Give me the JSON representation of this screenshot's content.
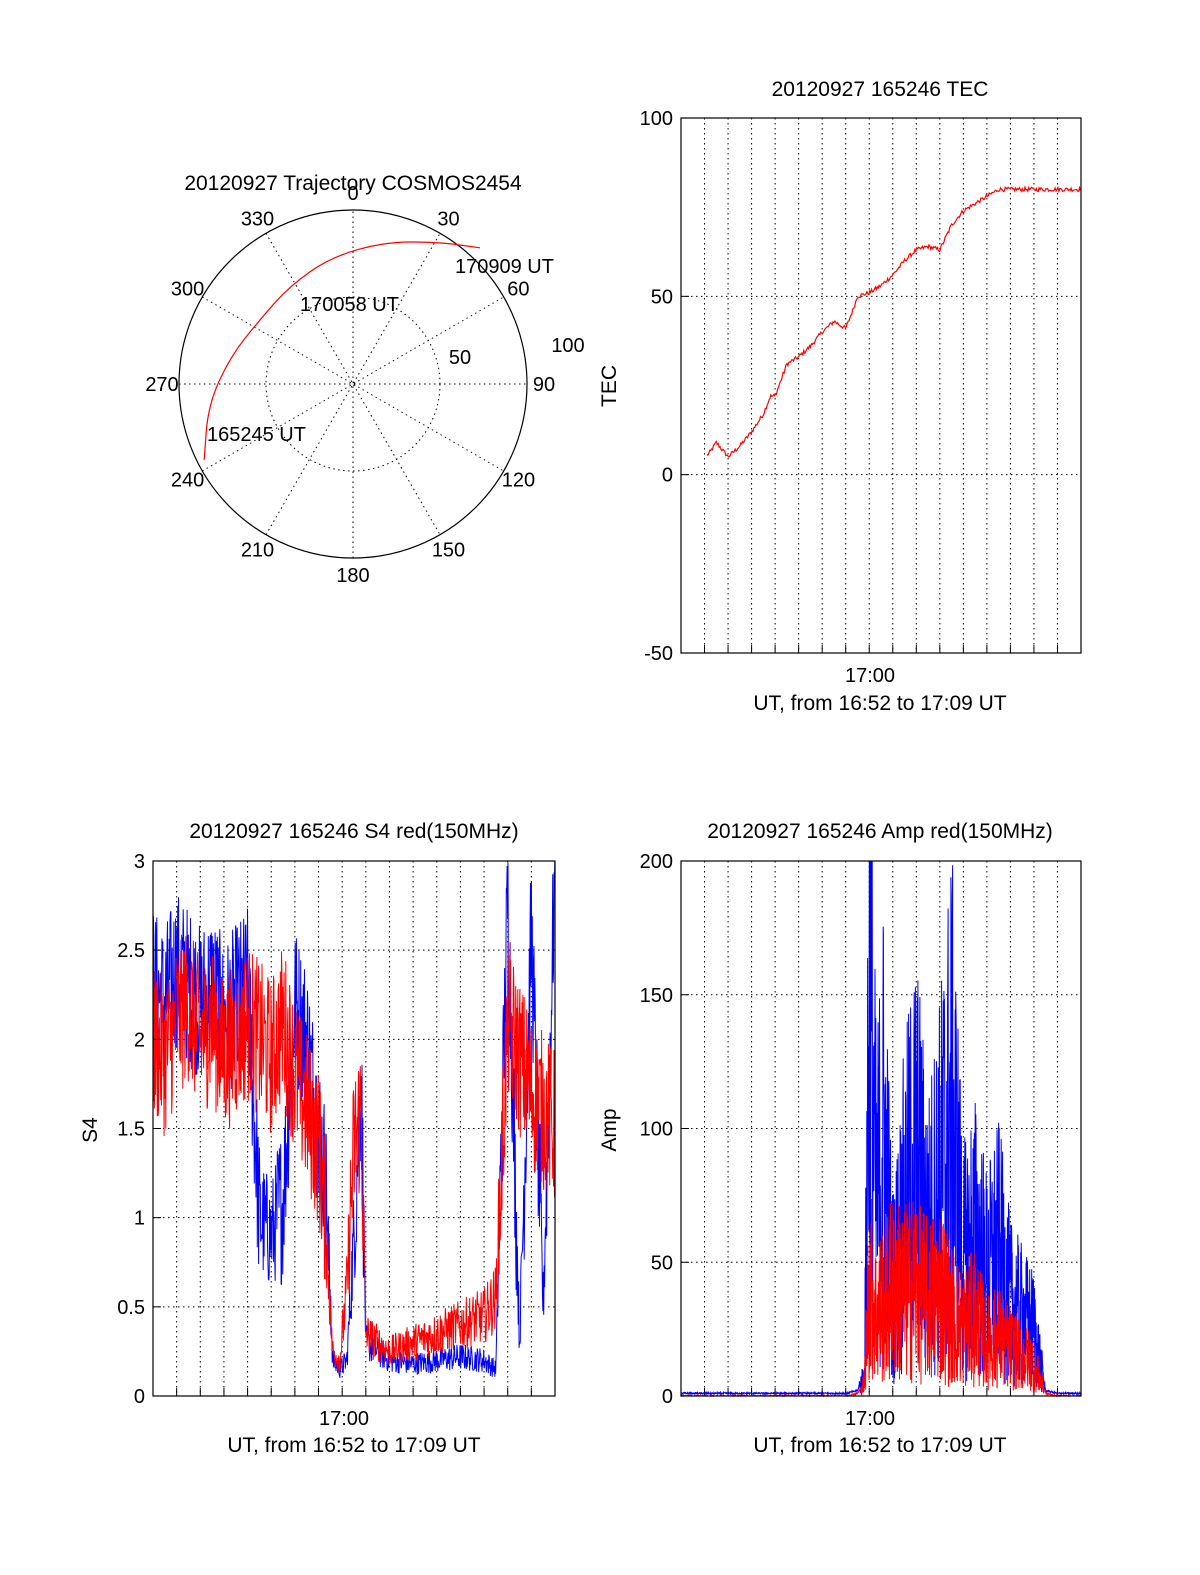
{
  "chart_data": [
    {
      "type": "polar",
      "title": "20120927 Trajectory COSMOS2454",
      "azimuth_labels": [
        "0",
        "30",
        "60",
        "90",
        "120",
        "150",
        "180",
        "210",
        "240",
        "270",
        "300",
        "330"
      ],
      "elevation_labels": [
        "50",
        "100"
      ],
      "trajectory": [
        {
          "az": 243,
          "r": 96
        },
        {
          "az": 262,
          "r": 84
        },
        {
          "az": 283,
          "r": 72
        },
        {
          "az": 305,
          "r": 65
        },
        {
          "az": 327,
          "r": 67
        },
        {
          "az": 350,
          "r": 74
        },
        {
          "az": 13,
          "r": 84
        },
        {
          "az": 32,
          "r": 96
        },
        {
          "az": 43,
          "r": 107
        }
      ],
      "annotations": [
        {
          "text": "170909 UT",
          "az": 43,
          "r": 107
        },
        {
          "text": "170058 UT",
          "az": 338,
          "r": 52
        },
        {
          "text": "165245 UT",
          "az": 250,
          "r": 75
        }
      ],
      "color": "#ff0000"
    },
    {
      "type": "line",
      "title": "20120927 165246 TEC",
      "ylabel": "TEC",
      "xlabel": "UT, from 16:52 to 17:09 UT",
      "xtick_label": "17:00",
      "ylim": [
        -50,
        100
      ],
      "yticks": [
        "-50",
        "0",
        "50",
        "100"
      ],
      "x": [
        0,
        0.6,
        1.2,
        1.5,
        2,
        2.5,
        3,
        3.5,
        3.8,
        4,
        4.5,
        5,
        5.5,
        6,
        6.5,
        7,
        7.3,
        7.5,
        8,
        8.5,
        9,
        9.5,
        10,
        10.5,
        11,
        11.5,
        12,
        12.5,
        13,
        13.5,
        14,
        14.5,
        15,
        15.5,
        15.8,
        16.5,
        17
      ],
      "series": [
        {
          "color": "#ff0000",
          "values": [
            0,
            3,
            6,
            9,
            5,
            8,
            12,
            17,
            22,
            22,
            31,
            33,
            36,
            40,
            43,
            41,
            46,
            50,
            51,
            53,
            56,
            60,
            63,
            64,
            63,
            70,
            74,
            76,
            78,
            80,
            80,
            80,
            80,
            80,
            80,
            80,
            80
          ]
        }
      ],
      "x_range_minutes": [
        0,
        17
      ]
    },
    {
      "type": "line",
      "title": "20120927 165246 S4 red(150MHz)",
      "ylabel": "S4",
      "xlabel": "UT, from 16:52 to 17:09 UT",
      "xtick_label": "17:00",
      "ylim": [
        0,
        3
      ],
      "yticks": [
        "0",
        "0.5",
        "1",
        "1.5",
        "2",
        "2.5",
        "3"
      ],
      "series": [
        {
          "name": "",
          "color": "#ff0000",
          "x": [
            0,
            0.5,
            1,
            1.5,
            2,
            2.5,
            3,
            3.5,
            4,
            4.5,
            5,
            5.5,
            6,
            6.5,
            7,
            7.3,
            7.6,
            7.9,
            8.2,
            8.5,
            8.8,
            9,
            10,
            11,
            12,
            13,
            14,
            14.5,
            15,
            15.5,
            16,
            16.5,
            17
          ],
          "values": [
            2.0,
            1.9,
            2.1,
            2.2,
            2.0,
            2.1,
            1.9,
            2.0,
            2.1,
            2.0,
            1.9,
            2.1,
            1.8,
            1.6,
            1.4,
            1.0,
            0.25,
            0.2,
            0.6,
            1.4,
            1.6,
            0.35,
            0.25,
            0.3,
            0.35,
            0.4,
            0.45,
            0.55,
            2.1,
            1.9,
            1.7,
            1.6,
            1.5
          ]
        },
        {
          "name": "",
          "color": "#0000ff",
          "x": [
            0,
            0.5,
            1,
            1.5,
            2,
            2.5,
            3,
            3.5,
            4,
            4.5,
            5,
            5.5,
            6,
            6.5,
            7,
            7.3,
            7.6,
            7.9,
            8.2,
            8.5,
            8.8,
            9,
            10,
            11,
            12,
            13,
            14,
            14.5,
            15,
            15.5,
            16,
            16.5,
            17
          ],
          "values": [
            2.3,
            2.2,
            2.4,
            2.3,
            2.2,
            2.3,
            2.1,
            2.2,
            2.3,
            1.0,
            0.9,
            1.1,
            2.2,
            2.0,
            1.5,
            1.2,
            0.2,
            0.15,
            0.2,
            0.9,
            1.8,
            0.3,
            0.2,
            0.18,
            0.2,
            0.22,
            0.2,
            0.15,
            2.8,
            0.3,
            2.6,
            0.5,
            3.0
          ]
        }
      ],
      "x_range_minutes": [
        0,
        17
      ]
    },
    {
      "type": "line",
      "title": "20120927 165246 Amp red(150MHz)",
      "ylabel": "Amp",
      "xlabel": "UT, from 16:52 to 17:09 UT",
      "xtick_label": "17:00",
      "ylim": [
        0,
        200
      ],
      "yticks": [
        "0",
        "50",
        "100",
        "150",
        "200"
      ],
      "series": [
        {
          "name": "",
          "color": "#0000ff",
          "x": [
            0,
            1,
            2,
            3,
            4,
            5,
            6,
            7,
            7.5,
            7.8,
            8,
            8.3,
            8.6,
            9,
            9.5,
            10,
            10.5,
            11,
            11.5,
            12,
            12.5,
            13,
            13.5,
            14,
            14.5,
            15,
            15.5,
            16,
            17
          ],
          "values": [
            1,
            1,
            1,
            1,
            1,
            1,
            1,
            1,
            2,
            8,
            158,
            70,
            100,
            40,
            70,
            90,
            60,
            80,
            110,
            50,
            60,
            45,
            55,
            35,
            30,
            25,
            2,
            1,
            1
          ]
        },
        {
          "name": "",
          "color": "#ff0000",
          "x": [
            0,
            1,
            2,
            3,
            4,
            5,
            6,
            7,
            7.5,
            7.8,
            8,
            8.3,
            8.6,
            9,
            9.5,
            10,
            10.5,
            11,
            11.5,
            12,
            12.5,
            13,
            13.5,
            14,
            14.5,
            15,
            15.5,
            16,
            17
          ],
          "values": [
            0,
            0,
            0,
            0,
            0,
            0,
            0,
            0,
            1,
            5,
            45,
            30,
            35,
            40,
            38,
            42,
            35,
            40,
            30,
            25,
            30,
            20,
            22,
            18,
            15,
            12,
            1,
            0,
            0
          ]
        }
      ],
      "x_range_minutes": [
        0,
        17
      ]
    }
  ]
}
